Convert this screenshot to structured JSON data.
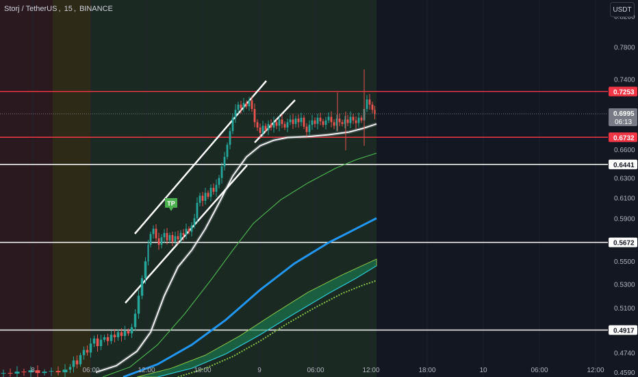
{
  "header": {
    "symbol": "Storj / TetherUS",
    "interval": "15",
    "exchange": "BINANCE"
  },
  "currency_button": "USDT",
  "chart_data": {
    "type": "candlestick",
    "y_scale": "log",
    "ylim": [
      0.4555,
      0.842
    ],
    "y_ticks": [
      "0.8200",
      "0.7800",
      "0.7400",
      "0.6995",
      "0.6600",
      "0.6300",
      "0.6100",
      "0.5900",
      "0.5500",
      "0.5300",
      "0.5100",
      "0.4740",
      "0.4590"
    ],
    "x_ticks": [
      "8",
      "06:00",
      "12:00",
      "18:00",
      "9",
      "06:00",
      "12:00",
      "18:00",
      "10",
      "06:00",
      "12:00"
    ],
    "last_price": "0.6995",
    "countdown": "06:13",
    "horizontal_levels": [
      {
        "price": "0.7253",
        "color": "#f23645"
      },
      {
        "price": "0.6732",
        "color": "#f23645"
      },
      {
        "price": "0.6441",
        "color": "#ffffff"
      },
      {
        "price": "0.5672",
        "color": "#ffffff"
      },
      {
        "price": "0.4917",
        "color": "#ffffff"
      }
    ],
    "annotation": "TP",
    "colors": {
      "up": "#26a69a",
      "down": "#ef5350",
      "upper_band": "#ffffff",
      "ma_green": "#4caf50",
      "ma_blue": "#2196f3",
      "cloud": "#1b8a5a"
    },
    "session_shading": [
      {
        "color": "#2a1a1f"
      },
      {
        "color": "#2e2a18"
      },
      {
        "color": "#1a2a22"
      }
    ],
    "candle_path": [
      [
        0,
        0.458
      ],
      [
        10,
        0.4585
      ],
      [
        20,
        0.458
      ],
      [
        30,
        0.4595
      ],
      [
        40,
        0.459
      ],
      [
        50,
        0.4605
      ],
      [
        60,
        0.4585
      ],
      [
        70,
        0.4595
      ],
      [
        80,
        0.46
      ],
      [
        90,
        0.459
      ],
      [
        100,
        0.461
      ],
      [
        105,
        0.463
      ],
      [
        110,
        0.468
      ],
      [
        115,
        0.465
      ],
      [
        120,
        0.472
      ],
      [
        125,
        0.476
      ],
      [
        130,
        0.474
      ],
      [
        135,
        0.481
      ],
      [
        140,
        0.485
      ],
      [
        145,
        0.479
      ],
      [
        150,
        0.484
      ],
      [
        155,
        0.486
      ],
      [
        160,
        0.483
      ],
      [
        165,
        0.488
      ],
      [
        170,
        0.486
      ],
      [
        175,
        0.49
      ],
      [
        180,
        0.487
      ],
      [
        185,
        0.491
      ],
      [
        190,
        0.489
      ],
      [
        195,
        0.494
      ],
      [
        200,
        0.505
      ],
      [
        205,
        0.52
      ],
      [
        210,
        0.535
      ],
      [
        215,
        0.55
      ],
      [
        218,
        0.565
      ],
      [
        222,
        0.575
      ],
      [
        226,
        0.58
      ],
      [
        230,
        0.571
      ],
      [
        234,
        0.565
      ],
      [
        238,
        0.572
      ],
      [
        242,
        0.576
      ],
      [
        246,
        0.569
      ],
      [
        250,
        0.574
      ],
      [
        254,
        0.568
      ],
      [
        258,
        0.573
      ],
      [
        262,
        0.57
      ],
      [
        266,
        0.576
      ],
      [
        270,
        0.574
      ],
      [
        274,
        0.58
      ],
      [
        278,
        0.577
      ],
      [
        282,
        0.583
      ],
      [
        286,
        0.59
      ],
      [
        290,
        0.605
      ],
      [
        294,
        0.612
      ],
      [
        298,
        0.607
      ],
      [
        302,
        0.615
      ],
      [
        306,
        0.611
      ],
      [
        310,
        0.62
      ],
      [
        314,
        0.616
      ],
      [
        318,
        0.623
      ],
      [
        322,
        0.63
      ],
      [
        326,
        0.642
      ],
      [
        330,
        0.652
      ],
      [
        334,
        0.665
      ],
      [
        338,
        0.68
      ],
      [
        342,
        0.695
      ],
      [
        346,
        0.704
      ],
      [
        350,
        0.71
      ],
      [
        354,
        0.706
      ],
      [
        358,
        0.712
      ],
      [
        362,
        0.708
      ],
      [
        366,
        0.715
      ],
      [
        370,
        0.705
      ],
      [
        374,
        0.69
      ],
      [
        378,
        0.684
      ],
      [
        382,
        0.678
      ],
      [
        386,
        0.686
      ],
      [
        390,
        0.681
      ],
      [
        394,
        0.688
      ],
      [
        398,
        0.684
      ],
      [
        402,
        0.69
      ],
      [
        406,
        0.686
      ],
      [
        410,
        0.693
      ],
      [
        414,
        0.688
      ],
      [
        418,
        0.684
      ],
      [
        422,
        0.69
      ],
      [
        426,
        0.693
      ],
      [
        430,
        0.688
      ],
      [
        434,
        0.694
      ],
      [
        438,
        0.69
      ],
      [
        442,
        0.695
      ],
      [
        446,
        0.685
      ],
      [
        450,
        0.679
      ],
      [
        454,
        0.687
      ],
      [
        458,
        0.692
      ],
      [
        462,
        0.688
      ],
      [
        466,
        0.695
      ],
      [
        470,
        0.691
      ],
      [
        474,
        0.687
      ],
      [
        478,
        0.692
      ],
      [
        482,
        0.696
      ],
      [
        486,
        0.69
      ],
      [
        490,
        0.686
      ],
      [
        494,
        0.694
      ],
      [
        498,
        0.69
      ],
      [
        502,
        0.688
      ],
      [
        506,
        0.693
      ],
      [
        510,
        0.689
      ],
      [
        514,
        0.696
      ],
      [
        518,
        0.692
      ],
      [
        522,
        0.689
      ],
      [
        526,
        0.695
      ],
      [
        530,
        0.692
      ],
      [
        534,
        0.705
      ],
      [
        538,
        0.716
      ],
      [
        542,
        0.71
      ],
      [
        546,
        0.704
      ],
      [
        549,
        0.6995
      ]
    ]
  }
}
